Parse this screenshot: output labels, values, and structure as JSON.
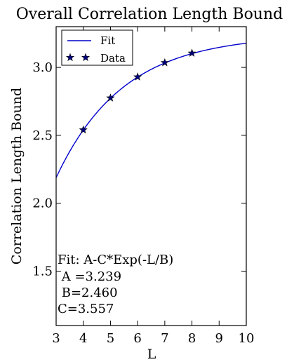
{
  "chart_data": {
    "type": "line",
    "title": "Overall Correlation Length Bound",
    "xlabel": "L",
    "ylabel": "Correlation Length Bound",
    "xlim": [
      3,
      10
    ],
    "ylim": [
      1.1,
      3.3
    ],
    "xticks": [
      "3",
      "4",
      "5",
      "6",
      "7",
      "8",
      "9",
      "10"
    ],
    "yticks": [
      "1.5",
      "2.0",
      "2.5",
      "3.0"
    ],
    "grid": false,
    "legend_position": "top-left",
    "series": [
      {
        "name": "Fit",
        "kind": "line",
        "color": "#0000cc",
        "formula": "A-C*Exp(-L/B)",
        "params": {
          "A": 3.239,
          "B": 2.46,
          "C": 3.557
        }
      },
      {
        "name": "Data",
        "kind": "scatter",
        "marker": "star",
        "color": "#000080",
        "x": [
          4,
          5,
          6,
          7,
          8
        ],
        "y": [
          2.54,
          2.775,
          2.93,
          3.035,
          3.105
        ]
      }
    ],
    "annotation": {
      "line1": "Fit: A-C*Exp(-L/B)",
      "line2": " A =3.239",
      "line3": " B=2.460",
      "line4": "C=3.557"
    }
  }
}
